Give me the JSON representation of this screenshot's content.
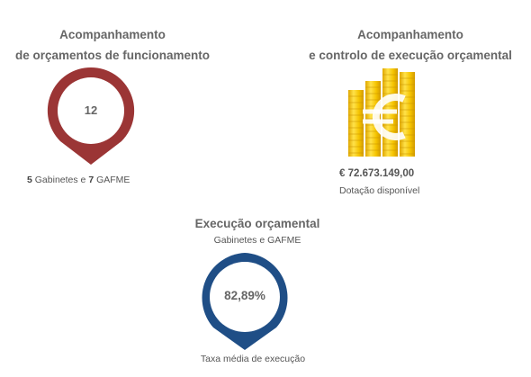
{
  "funcionamento": {
    "title_line1": "Acompanhamento",
    "title_line2": "de orçamentos de funcionamento",
    "value": "12",
    "caption_gab_count": "5",
    "caption_gab_label": "Gabinetes e",
    "caption_gafme_count": "7",
    "caption_gafme_label": "GAFME",
    "marker_color": "#9b3535",
    "marker_icon": "map-pin-icon"
  },
  "execucao_orcamental": {
    "title_line1": "Acompanhamento",
    "title_line2": "e controlo de execução orçamental",
    "amount": "€ 72.673.149,00",
    "amount_label": "Dotação disponível",
    "icon": "euro-coins-icon",
    "coin_color": "#f2c200"
  },
  "taxa": {
    "title": "Execução orçamental",
    "subtitle": "Gabinetes e GAFME",
    "value": "82,89%",
    "caption": "Taxa média de execução",
    "marker_color": "#1f4e86",
    "marker_icon": "map-pin-icon"
  }
}
